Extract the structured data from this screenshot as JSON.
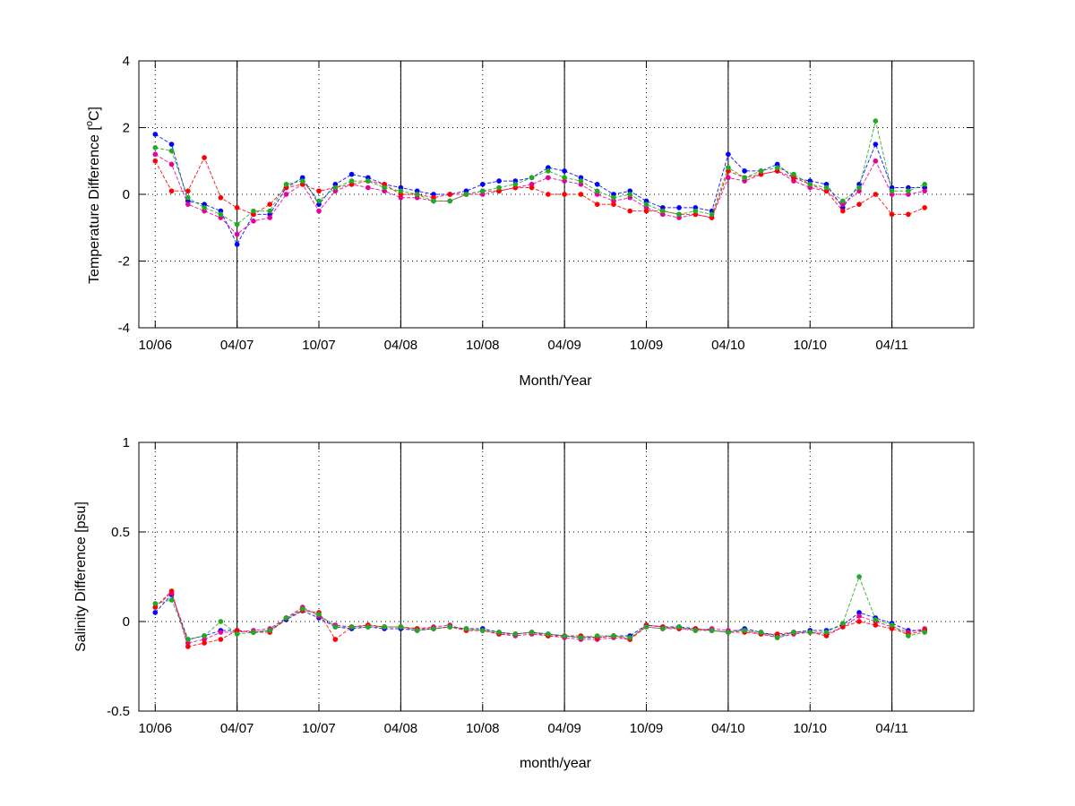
{
  "chart_data": [
    {
      "type": "scatter",
      "title": "",
      "xlabel": "Month/Year",
      "ylabel_main": "Temperature Difference [",
      "ylabel_sup": "o",
      "ylabel_end": "C]",
      "ylim": [
        -4,
        4
      ],
      "yticks": [
        {
          "v": -4,
          "label": "-4"
        },
        {
          "v": -2,
          "label": "-2"
        },
        {
          "v": 0,
          "label": "0"
        },
        {
          "v": 2,
          "label": "2"
        },
        {
          "v": 4,
          "label": "4"
        }
      ],
      "grid": true,
      "vlines": [
        2007.0,
        2007.5,
        2008.0,
        2008.5,
        2009.0
      ],
      "series": [
        {
          "color": "#0000ff",
          "marker": "*",
          "x": [
            2006.75,
            2006.8,
            2006.85,
            2006.9,
            2006.95,
            2007.0,
            2007.05,
            2007.1,
            2007.15,
            2007.2,
            2007.25,
            2007.3,
            2007.35,
            2007.4,
            2007.45,
            2007.5,
            2007.55,
            2007.6,
            2007.65,
            2007.7,
            2007.75,
            2007.8,
            2007.85,
            2007.9,
            2007.95,
            2008.0,
            2008.05,
            2008.1,
            2008.15,
            2008.2,
            2008.25,
            2008.3,
            2008.35,
            2008.4,
            2008.45,
            2008.5,
            2008.55,
            2008.6,
            2008.65,
            2008.7,
            2008.75,
            2008.8,
            2008.85,
            2008.9,
            2008.95,
            2009.0,
            2009.05,
            2009.1
          ],
          "y": [
            1.8,
            1.5,
            -0.2,
            -0.3,
            -0.5,
            -1.5,
            -0.6,
            -0.6,
            0.2,
            0.5,
            -0.3,
            0.3,
            0.6,
            0.5,
            0.3,
            0.2,
            0.1,
            0.0,
            0.0,
            0.1,
            0.3,
            0.4,
            0.4,
            0.5,
            0.8,
            0.7,
            0.5,
            0.3,
            0.0,
            0.1,
            -0.2,
            -0.4,
            -0.4,
            -0.4,
            -0.5,
            1.2,
            0.7,
            0.7,
            0.9,
            0.5,
            0.4,
            0.3,
            -0.4,
            0.3,
            1.5,
            0.2,
            0.2,
            0.2
          ]
        },
        {
          "color": "#e6009a",
          "marker": "*",
          "x": [
            2006.75,
            2006.8,
            2006.85,
            2006.9,
            2006.95,
            2007.0,
            2007.05,
            2007.1,
            2007.15,
            2007.2,
            2007.25,
            2007.3,
            2007.35,
            2007.4,
            2007.45,
            2007.5,
            2007.55,
            2007.6,
            2007.65,
            2007.7,
            2007.75,
            2007.8,
            2007.85,
            2007.9,
            2007.95,
            2008.0,
            2008.05,
            2008.1,
            2008.15,
            2008.2,
            2008.25,
            2008.3,
            2008.35,
            2008.4,
            2008.45,
            2008.5,
            2008.55,
            2008.6,
            2008.65,
            2008.7,
            2008.75,
            2008.8,
            2008.85,
            2008.9,
            2008.95,
            2009.0,
            2009.05,
            2009.1
          ],
          "y": [
            1.2,
            0.9,
            -0.3,
            -0.5,
            -0.7,
            -1.2,
            -0.8,
            -0.7,
            0.0,
            0.3,
            -0.5,
            0.1,
            0.3,
            0.2,
            0.1,
            -0.1,
            -0.1,
            -0.2,
            -0.2,
            0.0,
            0.0,
            0.1,
            0.2,
            0.3,
            0.5,
            0.4,
            0.3,
            0.0,
            -0.2,
            -0.1,
            -0.4,
            -0.6,
            -0.7,
            -0.6,
            -0.7,
            0.5,
            0.4,
            0.6,
            0.7,
            0.4,
            0.2,
            0.1,
            -0.3,
            0.1,
            1.0,
            0.0,
            0.0,
            0.1
          ]
        },
        {
          "color": "#ff0000",
          "marker": "*",
          "x": [
            2006.75,
            2006.8,
            2006.85,
            2006.9,
            2006.95,
            2007.0,
            2007.05,
            2007.1,
            2007.15,
            2007.2,
            2007.25,
            2007.3,
            2007.35,
            2007.4,
            2007.45,
            2007.5,
            2007.55,
            2007.6,
            2007.65,
            2007.7,
            2007.75,
            2007.8,
            2007.85,
            2007.9,
            2007.95,
            2008.0,
            2008.05,
            2008.1,
            2008.15,
            2008.2,
            2008.25,
            2008.3,
            2008.35,
            2008.4,
            2008.45,
            2008.5,
            2008.55,
            2008.6,
            2008.65,
            2008.7,
            2008.75,
            2008.8,
            2008.85,
            2008.9,
            2008.95,
            2009.0,
            2009.05,
            2009.1
          ],
          "y": [
            1.0,
            0.1,
            0.1,
            1.1,
            -0.1,
            -0.4,
            -0.6,
            -0.3,
            0.2,
            0.3,
            0.1,
            0.2,
            0.3,
            0.4,
            0.3,
            0.0,
            0.0,
            -0.1,
            0.0,
            0.0,
            0.1,
            0.1,
            0.2,
            0.2,
            0.0,
            0.0,
            0.0,
            -0.3,
            -0.3,
            -0.5,
            -0.5,
            -0.5,
            -0.6,
            -0.6,
            -0.7,
            0.7,
            0.5,
            0.6,
            0.7,
            0.5,
            0.3,
            0.1,
            -0.5,
            -0.3,
            0.0,
            -0.6,
            -0.6,
            -0.4
          ]
        },
        {
          "color": "#22aa22",
          "marker": "*",
          "x": [
            2006.75,
            2006.8,
            2006.85,
            2006.9,
            2006.95,
            2007.0,
            2007.05,
            2007.1,
            2007.15,
            2007.2,
            2007.25,
            2007.3,
            2007.35,
            2007.4,
            2007.45,
            2007.5,
            2007.55,
            2007.6,
            2007.65,
            2007.7,
            2007.75,
            2007.8,
            2007.85,
            2007.9,
            2007.95,
            2008.0,
            2008.05,
            2008.1,
            2008.15,
            2008.2,
            2008.25,
            2008.3,
            2008.35,
            2008.4,
            2008.45,
            2008.5,
            2008.55,
            2008.6,
            2008.65,
            2008.7,
            2008.75,
            2008.8,
            2008.85,
            2008.9,
            2008.95,
            2009.0,
            2009.05,
            2009.1
          ],
          "y": [
            1.4,
            1.3,
            -0.1,
            -0.4,
            -0.6,
            -0.9,
            -0.5,
            -0.5,
            0.3,
            0.4,
            -0.2,
            0.2,
            0.4,
            0.4,
            0.2,
            0.1,
            0.0,
            -0.2,
            -0.2,
            0.0,
            0.1,
            0.2,
            0.3,
            0.5,
            0.7,
            0.5,
            0.4,
            0.1,
            -0.1,
            0.0,
            -0.3,
            -0.5,
            -0.6,
            -0.5,
            -0.6,
            0.8,
            0.5,
            0.7,
            0.8,
            0.6,
            0.3,
            0.2,
            -0.2,
            0.2,
            2.2,
            0.1,
            0.1,
            0.3
          ]
        }
      ]
    },
    {
      "type": "scatter",
      "title": "",
      "xlabel": "month/year",
      "ylabel_main": "Salinity Difference [psu]",
      "ylim": [
        -0.5,
        1
      ],
      "yticks": [
        {
          "v": -0.5,
          "label": "-0.5"
        },
        {
          "v": 0,
          "label": "0"
        },
        {
          "v": 0.5,
          "label": "0.5"
        },
        {
          "v": 1,
          "label": "1"
        }
      ],
      "grid": true,
      "vlines": [
        2007.0,
        2007.5,
        2008.0,
        2008.5,
        2009.0
      ],
      "series": [
        {
          "color": "#0000ff",
          "marker": "*",
          "x": [
            2006.75,
            2006.8,
            2006.85,
            2006.9,
            2006.95,
            2007.0,
            2007.05,
            2007.1,
            2007.15,
            2007.2,
            2007.25,
            2007.3,
            2007.35,
            2007.4,
            2007.45,
            2007.5,
            2007.55,
            2007.6,
            2007.65,
            2007.7,
            2007.75,
            2007.8,
            2007.85,
            2007.9,
            2007.95,
            2008.0,
            2008.05,
            2008.1,
            2008.15,
            2008.2,
            2008.25,
            2008.3,
            2008.35,
            2008.4,
            2008.45,
            2008.5,
            2008.55,
            2008.6,
            2008.65,
            2008.7,
            2008.75,
            2008.8,
            2008.85,
            2008.9,
            2008.95,
            2009.0,
            2009.05,
            2009.1
          ],
          "y": [
            0.05,
            0.15,
            -0.1,
            -0.08,
            -0.05,
            -0.05,
            -0.06,
            -0.05,
            0.01,
            0.06,
            0.02,
            -0.03,
            -0.04,
            -0.03,
            -0.04,
            -0.04,
            -0.05,
            -0.04,
            -0.03,
            -0.04,
            -0.04,
            -0.06,
            -0.07,
            -0.06,
            -0.07,
            -0.08,
            -0.09,
            -0.09,
            -0.08,
            -0.08,
            -0.02,
            -0.03,
            -0.03,
            -0.04,
            -0.05,
            -0.06,
            -0.04,
            -0.06,
            -0.08,
            -0.06,
            -0.05,
            -0.05,
            -0.02,
            0.05,
            0.02,
            -0.01,
            -0.05,
            -0.05
          ]
        },
        {
          "color": "#e6009a",
          "marker": "*",
          "x": [
            2006.75,
            2006.8,
            2006.85,
            2006.9,
            2006.95,
            2007.0,
            2007.05,
            2007.1,
            2007.15,
            2007.2,
            2007.25,
            2007.3,
            2007.35,
            2007.4,
            2007.45,
            2007.5,
            2007.55,
            2007.6,
            2007.65,
            2007.7,
            2007.75,
            2007.8,
            2007.85,
            2007.9,
            2007.95,
            2008.0,
            2008.05,
            2008.1,
            2008.15,
            2008.2,
            2008.25,
            2008.3,
            2008.35,
            2008.4,
            2008.45,
            2008.5,
            2008.55,
            2008.6,
            2008.65,
            2008.7,
            2008.75,
            2008.8,
            2008.85,
            2008.9,
            2008.95,
            2009.0,
            2009.05,
            2009.1
          ],
          "y": [
            0.08,
            0.16,
            -0.12,
            -0.1,
            -0.06,
            -0.06,
            -0.05,
            -0.04,
            0.02,
            0.08,
            0.03,
            -0.02,
            -0.03,
            -0.02,
            -0.03,
            -0.03,
            -0.04,
            -0.03,
            -0.02,
            -0.05,
            -0.05,
            -0.07,
            -0.08,
            -0.07,
            -0.08,
            -0.09,
            -0.1,
            -0.1,
            -0.09,
            -0.1,
            -0.03,
            -0.04,
            -0.04,
            -0.05,
            -0.04,
            -0.05,
            -0.05,
            -0.07,
            -0.09,
            -0.07,
            -0.06,
            -0.07,
            -0.03,
            0.03,
            0.0,
            -0.03,
            -0.06,
            -0.04
          ]
        },
        {
          "color": "#ff0000",
          "marker": "*",
          "x": [
            2006.75,
            2006.8,
            2006.85,
            2006.9,
            2006.95,
            2007.0,
            2007.05,
            2007.1,
            2007.15,
            2007.2,
            2007.25,
            2007.3,
            2007.35,
            2007.4,
            2007.45,
            2007.5,
            2007.55,
            2007.6,
            2007.65,
            2007.7,
            2007.75,
            2007.8,
            2007.85,
            2007.9,
            2007.95,
            2008.0,
            2008.05,
            2008.1,
            2008.15,
            2008.2,
            2008.25,
            2008.3,
            2008.35,
            2008.4,
            2008.45,
            2008.5,
            2008.55,
            2008.6,
            2008.65,
            2008.7,
            2008.75,
            2008.8,
            2008.85,
            2008.9,
            2008.95,
            2009.0,
            2009.05,
            2009.1
          ],
          "y": [
            0.08,
            0.17,
            -0.14,
            -0.12,
            -0.1,
            -0.05,
            -0.06,
            -0.06,
            0.02,
            0.06,
            0.05,
            -0.1,
            -0.03,
            -0.02,
            -0.03,
            -0.03,
            -0.04,
            -0.04,
            -0.03,
            -0.05,
            -0.05,
            -0.07,
            -0.07,
            -0.06,
            -0.08,
            -0.08,
            -0.08,
            -0.09,
            -0.08,
            -0.1,
            -0.02,
            -0.03,
            -0.04,
            -0.04,
            -0.05,
            -0.06,
            -0.06,
            -0.07,
            -0.07,
            -0.06,
            -0.06,
            -0.08,
            -0.03,
            0.0,
            -0.02,
            -0.04,
            -0.07,
            -0.05
          ]
        },
        {
          "color": "#22aa22",
          "marker": "*",
          "x": [
            2006.75,
            2006.8,
            2006.85,
            2006.9,
            2006.95,
            2007.0,
            2007.05,
            2007.1,
            2007.15,
            2007.2,
            2007.25,
            2007.3,
            2007.35,
            2007.4,
            2007.45,
            2007.5,
            2007.55,
            2007.6,
            2007.65,
            2007.7,
            2007.75,
            2007.8,
            2007.85,
            2007.9,
            2007.95,
            2008.0,
            2008.05,
            2008.1,
            2008.15,
            2008.2,
            2008.25,
            2008.3,
            2008.35,
            2008.4,
            2008.45,
            2008.5,
            2008.55,
            2008.6,
            2008.65,
            2008.7,
            2008.75,
            2008.8,
            2008.85,
            2008.9,
            2008.95,
            2009.0,
            2009.05,
            2009.1
          ],
          "y": [
            0.1,
            0.12,
            -0.1,
            -0.08,
            0.0,
            -0.07,
            -0.06,
            -0.05,
            0.02,
            0.07,
            0.04,
            -0.03,
            -0.03,
            -0.03,
            -0.03,
            -0.03,
            -0.05,
            -0.04,
            -0.03,
            -0.04,
            -0.05,
            -0.06,
            -0.07,
            -0.06,
            -0.07,
            -0.08,
            -0.09,
            -0.08,
            -0.08,
            -0.09,
            -0.03,
            -0.04,
            -0.03,
            -0.05,
            -0.05,
            -0.06,
            -0.05,
            -0.06,
            -0.09,
            -0.06,
            -0.06,
            -0.06,
            -0.01,
            0.25,
            0.01,
            -0.02,
            -0.08,
            -0.06
          ]
        }
      ]
    }
  ],
  "shared_x": {
    "xlim": [
      2006.7,
      2009.25
    ],
    "xticks": [
      {
        "v": 2006.75,
        "label": "10/06"
      },
      {
        "v": 2007.0,
        "label": "04/07"
      },
      {
        "v": 2007.25,
        "label": "10/07"
      },
      {
        "v": 2007.5,
        "label": "04/08"
      },
      {
        "v": 2007.75,
        "label": "10/08"
      },
      {
        "v": 2008.0,
        "label": "04/09"
      },
      {
        "v": 2008.25,
        "label": "10/09"
      },
      {
        "v": 2008.5,
        "label": "04/10"
      },
      {
        "v": 2008.75,
        "label": "10/10"
      },
      {
        "v": 2009.0,
        "label": "04/11"
      }
    ]
  }
}
